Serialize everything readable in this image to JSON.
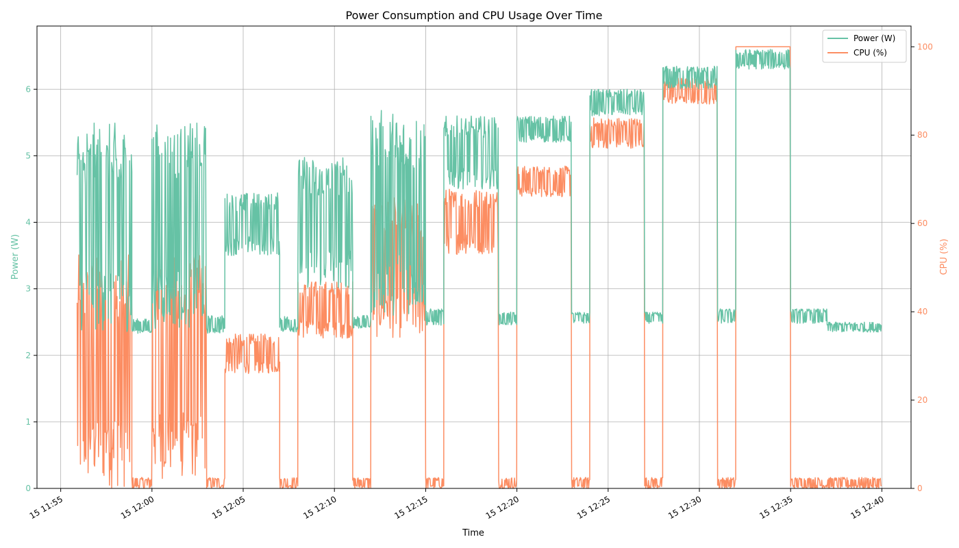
{
  "chart_data": {
    "type": "line",
    "title": "Power Consumption and CPU Usage Over Time",
    "xlabel": "Time",
    "ylabel_left": "Power (W)",
    "ylabel_right": "CPU (%)",
    "grid": true,
    "legend_position": "top-right",
    "x_unit": "minutes",
    "x_ticks": [
      {
        "t": 0,
        "label": "15 11:55"
      },
      {
        "t": 5,
        "label": "15 12:00"
      },
      {
        "t": 10,
        "label": "15 12:05"
      },
      {
        "t": 15,
        "label": "15 12:10"
      },
      {
        "t": 20,
        "label": "15 12:15"
      },
      {
        "t": 25,
        "label": "15 12:20"
      },
      {
        "t": 30,
        "label": "15 12:25"
      },
      {
        "t": 35,
        "label": "15 12:30"
      },
      {
        "t": 40,
        "label": "15 12:35"
      },
      {
        "t": 45,
        "label": "15 12:40"
      }
    ],
    "xlim": [
      -1.3,
      46.6
    ],
    "ylim_left": [
      0,
      6.95
    ],
    "ylim_right": [
      0,
      104.7
    ],
    "y_ticks_left": [
      0,
      1,
      2,
      3,
      4,
      5,
      6
    ],
    "y_ticks_right": [
      0,
      20,
      40,
      60,
      80,
      100
    ],
    "series": [
      {
        "name": "Power (W)",
        "axis": "left",
        "color": "#66c2a5",
        "segments": [
          {
            "t0": 0.9,
            "t1": 3.9,
            "lo": 2.35,
            "hi": 5.5
          },
          {
            "t0": 3.9,
            "t1": 5.0,
            "lo": 2.33,
            "hi": 2.55
          },
          {
            "t0": 5.0,
            "t1": 8.0,
            "lo": 2.4,
            "hi": 5.5
          },
          {
            "t0": 8.0,
            "t1": 9.0,
            "lo": 2.33,
            "hi": 2.6
          },
          {
            "t0": 9.0,
            "t1": 12.0,
            "lo": 3.5,
            "hi": 4.45
          },
          {
            "t0": 12.0,
            "t1": 13.0,
            "lo": 2.35,
            "hi": 2.6
          },
          {
            "t0": 13.0,
            "t1": 16.0,
            "lo": 3.0,
            "hi": 5.0
          },
          {
            "t0": 16.0,
            "t1": 17.0,
            "lo": 2.4,
            "hi": 2.6
          },
          {
            "t0": 17.0,
            "t1": 20.0,
            "lo": 2.6,
            "hi": 5.7
          },
          {
            "t0": 20.0,
            "t1": 21.0,
            "lo": 2.45,
            "hi": 2.7
          },
          {
            "t0": 21.0,
            "t1": 24.0,
            "lo": 4.5,
            "hi": 5.6
          },
          {
            "t0": 24.0,
            "t1": 25.0,
            "lo": 2.45,
            "hi": 2.65
          },
          {
            "t0": 25.0,
            "t1": 28.0,
            "lo": 5.2,
            "hi": 5.6
          },
          {
            "t0": 28.0,
            "t1": 29.0,
            "lo": 2.48,
            "hi": 2.65
          },
          {
            "t0": 29.0,
            "t1": 32.0,
            "lo": 5.6,
            "hi": 6.0
          },
          {
            "t0": 32.0,
            "t1": 33.0,
            "lo": 2.48,
            "hi": 2.65
          },
          {
            "t0": 33.0,
            "t1": 36.0,
            "lo": 6.0,
            "hi": 6.35
          },
          {
            "t0": 36.0,
            "t1": 37.0,
            "lo": 2.48,
            "hi": 2.7
          },
          {
            "t0": 37.0,
            "t1": 40.0,
            "lo": 6.3,
            "hi": 6.6
          },
          {
            "t0": 40.0,
            "t1": 42.0,
            "lo": 2.48,
            "hi": 2.7
          },
          {
            "t0": 42.0,
            "t1": 45.0,
            "lo": 2.35,
            "hi": 2.5
          }
        ]
      },
      {
        "name": "CPU (%)",
        "axis": "right",
        "color": "#fc8d62",
        "segments": [
          {
            "t0": 0.9,
            "t1": 3.9,
            "lo": 0,
            "hi": 53
          },
          {
            "t0": 3.9,
            "t1": 5.0,
            "lo": 0,
            "hi": 2.5
          },
          {
            "t0": 5.0,
            "t1": 8.0,
            "lo": 2,
            "hi": 53
          },
          {
            "t0": 8.0,
            "t1": 9.0,
            "lo": 0,
            "hi": 2.5
          },
          {
            "t0": 9.0,
            "t1": 12.0,
            "lo": 26,
            "hi": 35
          },
          {
            "t0": 12.0,
            "t1": 13.0,
            "lo": 0,
            "hi": 2.5
          },
          {
            "t0": 13.0,
            "t1": 16.0,
            "lo": 34,
            "hi": 47
          },
          {
            "t0": 16.0,
            "t1": 17.0,
            "lo": 0,
            "hi": 2.5
          },
          {
            "t0": 17.0,
            "t1": 20.0,
            "lo": 34,
            "hi": 66
          },
          {
            "t0": 20.0,
            "t1": 21.0,
            "lo": 0,
            "hi": 2.5
          },
          {
            "t0": 21.0,
            "t1": 24.0,
            "lo": 53,
            "hi": 68
          },
          {
            "t0": 24.0,
            "t1": 25.0,
            "lo": 0,
            "hi": 2.5
          },
          {
            "t0": 25.0,
            "t1": 28.0,
            "lo": 66,
            "hi": 73
          },
          {
            "t0": 28.0,
            "t1": 29.0,
            "lo": 0,
            "hi": 2.5
          },
          {
            "t0": 29.0,
            "t1": 32.0,
            "lo": 77,
            "hi": 84
          },
          {
            "t0": 32.0,
            "t1": 33.0,
            "lo": 0,
            "hi": 2.5
          },
          {
            "t0": 33.0,
            "t1": 36.0,
            "lo": 87,
            "hi": 93
          },
          {
            "t0": 36.0,
            "t1": 37.0,
            "lo": 0,
            "hi": 2.5
          },
          {
            "t0": 37.0,
            "t1": 40.0,
            "lo": 100,
            "hi": 100
          },
          {
            "t0": 40.0,
            "t1": 45.0,
            "lo": 0,
            "hi": 2.5
          }
        ]
      }
    ]
  },
  "legend": {
    "items": [
      {
        "label": "Power (W)",
        "color": "#66c2a5"
      },
      {
        "label": "CPU (%)",
        "color": "#fc8d62"
      }
    ]
  }
}
